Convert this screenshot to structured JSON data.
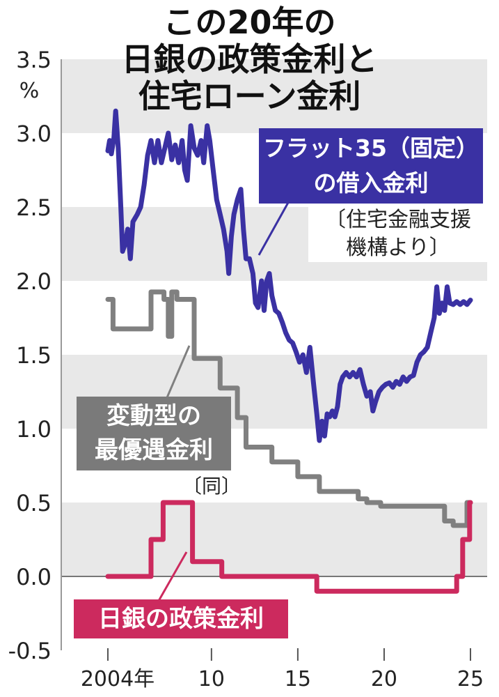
{
  "title_lines": [
    "この20年の",
    "日銀の政策金利と",
    "住宅ローン金利"
  ],
  "labels": {
    "flat35_line1": "フラット35（固定）",
    "flat35_line2": "の借入金利",
    "flat35_source_line1": "〔住宅金融支援",
    "flat35_source_line2": "機構より〕",
    "prime_line1": "変動型の",
    "prime_line2": "最優遇金利",
    "prime_source": "〔同〕",
    "boj": "日銀の政策金利"
  },
  "colors": {
    "flat35": "#3a31a3",
    "prime": "#808080",
    "boj": "#cc2a5e",
    "band": "#e8e8e8"
  },
  "chart_data": {
    "type": "line",
    "title": "この20年の日銀の政策金利と住宅ローン金利",
    "ylabel": "%",
    "ylim": [
      -0.5,
      3.5
    ],
    "xlim": [
      2004,
      2025
    ],
    "y_ticks": [
      "3.5",
      "3.0",
      "2.5",
      "2.0",
      "1.5",
      "1.0",
      "0.5",
      "0.0",
      "-0.5"
    ],
    "x_ticks": [
      {
        "x": 2004,
        "label": "2004年"
      },
      {
        "x": 2010,
        "label": "10"
      },
      {
        "x": 2015,
        "label": "15"
      },
      {
        "x": 2020,
        "label": "20"
      },
      {
        "x": 2025,
        "label": "25"
      }
    ],
    "grid": "alternating horizontal bands",
    "series": [
      {
        "name": "フラット35（固定）の借入金利",
        "step": false,
        "points": [
          [
            2004.0,
            2.88
          ],
          [
            2004.1,
            2.95
          ],
          [
            2004.2,
            2.86
          ],
          [
            2004.35,
            2.97
          ],
          [
            2004.45,
            3.15
          ],
          [
            2004.6,
            2.9
          ],
          [
            2004.75,
            2.5
          ],
          [
            2004.85,
            2.2
          ],
          [
            2005.0,
            2.25
          ],
          [
            2005.15,
            2.35
          ],
          [
            2005.3,
            2.15
          ],
          [
            2005.45,
            2.4
          ],
          [
            2005.7,
            2.45
          ],
          [
            2005.9,
            2.5
          ],
          [
            2006.1,
            2.65
          ],
          [
            2006.3,
            2.85
          ],
          [
            2006.5,
            2.95
          ],
          [
            2006.7,
            2.8
          ],
          [
            2006.9,
            2.95
          ],
          [
            2007.1,
            2.8
          ],
          [
            2007.3,
            2.9
          ],
          [
            2007.5,
            3.0
          ],
          [
            2007.7,
            2.82
          ],
          [
            2007.9,
            2.92
          ],
          [
            2008.1,
            2.8
          ],
          [
            2008.3,
            2.95
          ],
          [
            2008.45,
            2.75
          ],
          [
            2008.6,
            2.68
          ],
          [
            2008.8,
            3.05
          ],
          [
            2009.0,
            2.9
          ],
          [
            2009.2,
            2.85
          ],
          [
            2009.4,
            2.95
          ],
          [
            2009.55,
            2.8
          ],
          [
            2009.75,
            3.05
          ],
          [
            2009.9,
            2.95
          ],
          [
            2010.1,
            2.75
          ],
          [
            2010.3,
            2.55
          ],
          [
            2010.5,
            2.45
          ],
          [
            2010.7,
            2.35
          ],
          [
            2010.9,
            2.2
          ],
          [
            2011.0,
            2.05
          ],
          [
            2011.15,
            2.3
          ],
          [
            2011.3,
            2.45
          ],
          [
            2011.5,
            2.55
          ],
          [
            2011.7,
            2.62
          ],
          [
            2011.85,
            2.35
          ],
          [
            2012.0,
            2.15
          ],
          [
            2012.2,
            2.15
          ],
          [
            2012.4,
            2.05
          ],
          [
            2012.55,
            1.85
          ],
          [
            2012.7,
            1.82
          ],
          [
            2012.9,
            2.0
          ],
          [
            2013.05,
            1.8
          ],
          [
            2013.2,
            2.0
          ],
          [
            2013.35,
            2.05
          ],
          [
            2013.5,
            1.9
          ],
          [
            2013.7,
            1.8
          ],
          [
            2013.9,
            1.78
          ],
          [
            2014.1,
            1.72
          ],
          [
            2014.3,
            1.65
          ],
          [
            2014.5,
            1.6
          ],
          [
            2014.7,
            1.58
          ],
          [
            2014.9,
            1.52
          ],
          [
            2015.1,
            1.45
          ],
          [
            2015.3,
            1.5
          ],
          [
            2015.5,
            1.38
          ],
          [
            2015.7,
            1.55
          ],
          [
            2015.9,
            1.32
          ],
          [
            2016.1,
            1.1
          ],
          [
            2016.25,
            0.92
          ],
          [
            2016.4,
            1.05
          ],
          [
            2016.55,
            0.95
          ],
          [
            2016.7,
            1.1
          ],
          [
            2016.85,
            1.08
          ],
          [
            2017.0,
            1.12
          ],
          [
            2017.15,
            1.08
          ],
          [
            2017.3,
            1.15
          ],
          [
            2017.45,
            1.3
          ],
          [
            2017.6,
            1.35
          ],
          [
            2017.8,
            1.38
          ],
          [
            2018.0,
            1.35
          ],
          [
            2018.2,
            1.38
          ],
          [
            2018.4,
            1.35
          ],
          [
            2018.6,
            1.4
          ],
          [
            2018.8,
            1.3
          ],
          [
            2019.0,
            1.22
          ],
          [
            2019.2,
            1.25
          ],
          [
            2019.35,
            1.12
          ],
          [
            2019.5,
            1.18
          ],
          [
            2019.7,
            1.25
          ],
          [
            2019.9,
            1.28
          ],
          [
            2020.1,
            1.3
          ],
          [
            2020.3,
            1.31
          ],
          [
            2020.5,
            1.28
          ],
          [
            2020.7,
            1.32
          ],
          [
            2020.9,
            1.3
          ],
          [
            2021.1,
            1.35
          ],
          [
            2021.3,
            1.32
          ],
          [
            2021.5,
            1.35
          ],
          [
            2021.7,
            1.36
          ],
          [
            2021.9,
            1.45
          ],
          [
            2022.1,
            1.5
          ],
          [
            2022.3,
            1.52
          ],
          [
            2022.5,
            1.55
          ],
          [
            2022.7,
            1.65
          ],
          [
            2022.9,
            1.75
          ],
          [
            2023.05,
            1.96
          ],
          [
            2023.2,
            1.78
          ],
          [
            2023.35,
            1.85
          ],
          [
            2023.5,
            1.8
          ],
          [
            2023.65,
            1.96
          ],
          [
            2023.8,
            1.85
          ],
          [
            2024.0,
            1.84
          ],
          [
            2024.2,
            1.86
          ],
          [
            2024.4,
            1.84
          ],
          [
            2024.6,
            1.86
          ],
          [
            2024.8,
            1.84
          ],
          [
            2025.0,
            1.87
          ]
        ]
      },
      {
        "name": "変動型の最優遇金利",
        "step": true,
        "points": [
          [
            2004.0,
            1.875
          ],
          [
            2004.3,
            1.875
          ],
          [
            2004.3,
            1.675
          ],
          [
            2006.5,
            1.675
          ],
          [
            2006.5,
            1.925
          ],
          [
            2007.25,
            1.925
          ],
          [
            2007.25,
            1.875
          ],
          [
            2007.5,
            1.875
          ],
          [
            2007.5,
            1.625
          ],
          [
            2007.7,
            1.625
          ],
          [
            2007.7,
            1.925
          ],
          [
            2008.0,
            1.925
          ],
          [
            2008.0,
            1.875
          ],
          [
            2009.0,
            1.875
          ],
          [
            2009.0,
            1.475
          ],
          [
            2010.5,
            1.475
          ],
          [
            2010.5,
            1.275
          ],
          [
            2011.5,
            1.275
          ],
          [
            2011.5,
            1.075
          ],
          [
            2012.0,
            1.075
          ],
          [
            2012.0,
            0.875
          ],
          [
            2013.5,
            0.875
          ],
          [
            2013.5,
            0.775
          ],
          [
            2015.0,
            0.775
          ],
          [
            2015.0,
            0.675
          ],
          [
            2016.25,
            0.675
          ],
          [
            2016.25,
            0.575
          ],
          [
            2018.5,
            0.575
          ],
          [
            2018.5,
            0.525
          ],
          [
            2019.0,
            0.525
          ],
          [
            2019.0,
            0.5
          ],
          [
            2019.8,
            0.5
          ],
          [
            2019.8,
            0.475
          ],
          [
            2023.5,
            0.475
          ],
          [
            2023.5,
            0.375
          ],
          [
            2024.0,
            0.375
          ],
          [
            2024.0,
            0.345
          ],
          [
            2024.8,
            0.345
          ],
          [
            2024.8,
            0.5
          ],
          [
            2025.0,
            0.5
          ]
        ]
      },
      {
        "name": "日銀の政策金利",
        "step": true,
        "points": [
          [
            2004.0,
            0.0
          ],
          [
            2006.5,
            0.0
          ],
          [
            2006.5,
            0.25
          ],
          [
            2007.2,
            0.25
          ],
          [
            2007.2,
            0.5
          ],
          [
            2008.9,
            0.5
          ],
          [
            2008.9,
            0.1
          ],
          [
            2010.6,
            0.1
          ],
          [
            2010.6,
            0.0
          ],
          [
            2016.1,
            0.0
          ],
          [
            2016.1,
            -0.1
          ],
          [
            2024.2,
            -0.1
          ],
          [
            2024.2,
            0.0
          ],
          [
            2024.55,
            0.0
          ],
          [
            2024.55,
            0.25
          ],
          [
            2024.95,
            0.25
          ],
          [
            2024.95,
            0.5
          ],
          [
            2025.0,
            0.5
          ]
        ]
      }
    ]
  }
}
